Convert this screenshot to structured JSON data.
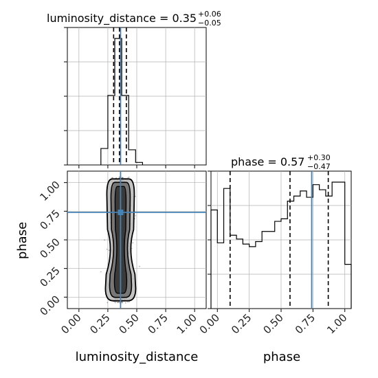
{
  "chart_data": {
    "type": "corner",
    "parameters": [
      "luminosity_distance",
      "phase"
    ],
    "truths": {
      "luminosity_distance": 0.36,
      "phase": 0.74
    },
    "grid": true,
    "panels": [
      {
        "kind": "histogram-1d",
        "parameter": "luminosity_distance",
        "title": {
          "label": "luminosity_distance = 0.35",
          "upper": "+0.06",
          "lower": "−0.05"
        },
        "xlim": [
          -0.1,
          1.1
        ],
        "bins": [
          {
            "x0": 0.19,
            "x1": 0.25,
            "count": 0.13
          },
          {
            "x0": 0.25,
            "x1": 0.31,
            "count": 0.55
          },
          {
            "x0": 0.31,
            "x1": 0.37,
            "count": 1.0
          },
          {
            "x0": 0.37,
            "x1": 0.43,
            "count": 0.55
          },
          {
            "x0": 0.43,
            "x1": 0.49,
            "count": 0.12
          },
          {
            "x0": 0.49,
            "x1": 0.55,
            "count": 0.02
          }
        ],
        "quantiles": [
          0.3,
          0.35,
          0.41
        ]
      },
      {
        "kind": "histogram-1d",
        "parameter": "phase",
        "title": {
          "label": "phase = 0.57",
          "upper": "+0.30",
          "lower": "−0.47"
        },
        "xlim": [
          -0.05,
          1.05
        ],
        "bins": [
          {
            "x0": -0.05,
            "x1": 0.0,
            "count": 0.78
          },
          {
            "x0": 0.0,
            "x1": 0.05,
            "count": 0.52
          },
          {
            "x0": 0.05,
            "x1": 0.1,
            "count": 0.95
          },
          {
            "x0": 0.1,
            "x1": 0.15,
            "count": 0.58
          },
          {
            "x0": 0.15,
            "x1": 0.2,
            "count": 0.55
          },
          {
            "x0": 0.2,
            "x1": 0.25,
            "count": 0.51
          },
          {
            "x0": 0.25,
            "x1": 0.3,
            "count": 0.49
          },
          {
            "x0": 0.3,
            "x1": 0.35,
            "count": 0.53
          },
          {
            "x0": 0.35,
            "x1": 0.4,
            "count": 0.61
          },
          {
            "x0": 0.4,
            "x1": 0.45,
            "count": 0.61
          },
          {
            "x0": 0.45,
            "x1": 0.5,
            "count": 0.69
          },
          {
            "x0": 0.5,
            "x1": 0.55,
            "count": 0.71
          },
          {
            "x0": 0.55,
            "x1": 0.6,
            "count": 0.85
          },
          {
            "x0": 0.6,
            "x1": 0.65,
            "count": 0.89
          },
          {
            "x0": 0.65,
            "x1": 0.7,
            "count": 0.93
          },
          {
            "x0": 0.7,
            "x1": 0.75,
            "count": 0.88
          },
          {
            "x0": 0.75,
            "x1": 0.8,
            "count": 0.98
          },
          {
            "x0": 0.8,
            "x1": 0.85,
            "count": 0.94
          },
          {
            "x0": 0.85,
            "x1": 0.9,
            "count": 0.89
          },
          {
            "x0": 0.9,
            "x1": 0.95,
            "count": 1.0
          },
          {
            "x0": 0.95,
            "x1": 1.0,
            "count": 1.0
          },
          {
            "x0": 1.0,
            "x1": 1.05,
            "count": 0.35
          }
        ],
        "quantiles": [
          0.1,
          0.57,
          0.87
        ]
      },
      {
        "kind": "scatter-2d",
        "x_parameter": "luminosity_distance",
        "y_parameter": "phase",
        "xlim": [
          -0.1,
          1.1
        ],
        "ylim": [
          -0.1,
          1.1
        ],
        "x_ticks": [
          "0.00",
          "0.25",
          "0.50",
          "0.75",
          "1.00"
        ],
        "y_ticks": [
          "0.00",
          "0.25",
          "0.50",
          "0.75",
          "1.00"
        ],
        "xlabel": "luminosity_distance",
        "ylabel": "phase",
        "sample_region": {
          "x_center": 0.36,
          "x_halfwidth": 0.1,
          "y_min": -0.05,
          "y_max": 1.05
        },
        "contour_levels": [
          "outer",
          "middle",
          "inner"
        ]
      }
    ],
    "phase_axis": {
      "xlabel": "phase",
      "x_ticks": [
        "0.00",
        "0.25",
        "0.50",
        "0.75",
        "1.00"
      ]
    }
  },
  "colors": {
    "histogram": "#000000",
    "truth_line": "#4682b4",
    "grid": "#b0b0b0",
    "scatter": "#000000",
    "contour_fill_inner": "#3a3a3a",
    "contour_fill_mid": "#777777",
    "contour_fill_outer": "#b8b8b8"
  }
}
